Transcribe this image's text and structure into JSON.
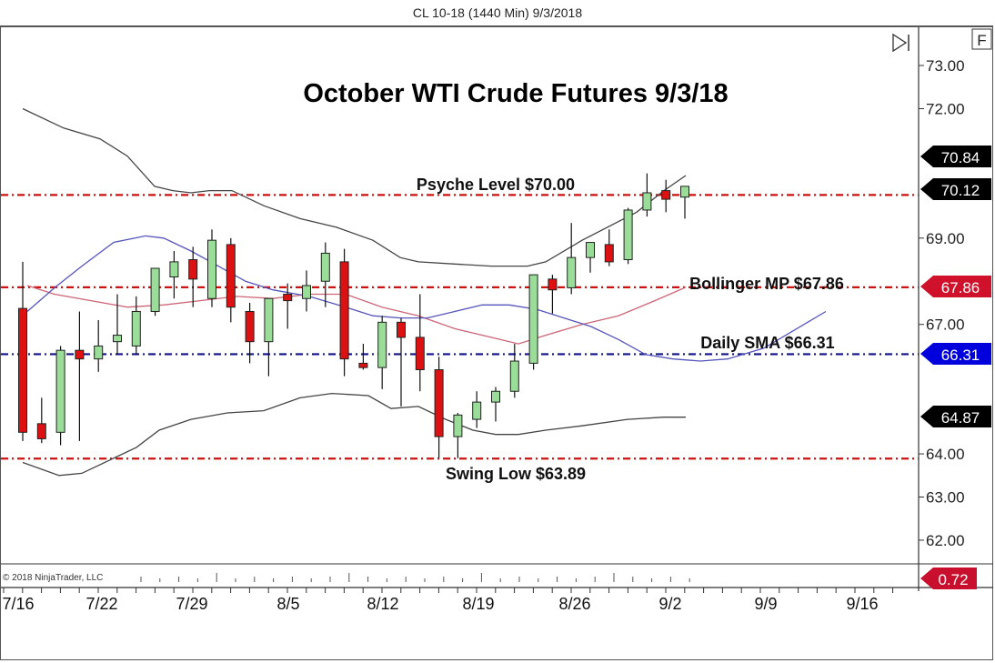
{
  "window": {
    "title": "CL 10-18 (1440 Min)  9/3/2018"
  },
  "toolbar": {
    "autoscroll_icon": "play-to-end-icon",
    "fixed_scale_label": "F"
  },
  "chart_data": {
    "type": "candlestick",
    "title": "October WTI Crude Futures 9/3/18",
    "instrument": "CL 10-18",
    "interval": "1440 Min",
    "date": "9/3/2018",
    "ylim": [
      61.5,
      73.4
    ],
    "y_ticks": [
      "73.00",
      "72.00",
      "69.00",
      "67.00",
      "64.00",
      "63.00",
      "62.00"
    ],
    "x_tick_labels": [
      "7/16",
      "7/22",
      "7/29",
      "8/5",
      "8/12",
      "8/19",
      "8/26",
      "9/2",
      "9/9",
      "9/16"
    ],
    "candles": [
      {
        "o": 67.37,
        "h": 68.45,
        "l": 64.3,
        "c": 64.5
      },
      {
        "o": 64.7,
        "h": 65.3,
        "l": 64.25,
        "c": 64.35
      },
      {
        "o": 64.5,
        "h": 66.5,
        "l": 64.2,
        "c": 66.4
      },
      {
        "o": 66.4,
        "h": 67.3,
        "l": 64.3,
        "c": 66.2
      },
      {
        "o": 66.2,
        "h": 67.1,
        "l": 65.9,
        "c": 66.5
      },
      {
        "o": 66.6,
        "h": 67.7,
        "l": 66.3,
        "c": 66.75
      },
      {
        "o": 66.5,
        "h": 67.65,
        "l": 66.3,
        "c": 67.3
      },
      {
        "o": 67.3,
        "h": 68.0,
        "l": 67.2,
        "c": 68.3
      },
      {
        "o": 68.1,
        "h": 68.7,
        "l": 67.6,
        "c": 68.45
      },
      {
        "o": 68.5,
        "h": 68.8,
        "l": 67.4,
        "c": 68.05
      },
      {
        "o": 67.6,
        "h": 69.2,
        "l": 67.4,
        "c": 68.95
      },
      {
        "o": 68.85,
        "h": 69.0,
        "l": 67.05,
        "c": 67.4
      },
      {
        "o": 67.3,
        "h": 67.5,
        "l": 66.1,
        "c": 66.6
      },
      {
        "o": 66.6,
        "h": 67.6,
        "l": 65.8,
        "c": 67.6
      },
      {
        "o": 67.7,
        "h": 67.95,
        "l": 66.9,
        "c": 67.55
      },
      {
        "o": 67.6,
        "h": 68.25,
        "l": 67.3,
        "c": 67.9
      },
      {
        "o": 68.0,
        "h": 68.9,
        "l": 67.4,
        "c": 68.65
      },
      {
        "o": 68.45,
        "h": 68.75,
        "l": 65.8,
        "c": 66.2
      },
      {
        "o": 66.1,
        "h": 66.55,
        "l": 65.95,
        "c": 66.0
      },
      {
        "o": 66.0,
        "h": 67.2,
        "l": 65.5,
        "c": 67.05
      },
      {
        "o": 67.05,
        "h": 67.15,
        "l": 65.1,
        "c": 66.7
      },
      {
        "o": 66.7,
        "h": 67.7,
        "l": 65.45,
        "c": 65.95
      },
      {
        "o": 65.95,
        "h": 66.25,
        "l": 63.9,
        "c": 64.4
      },
      {
        "o": 64.4,
        "h": 64.95,
        "l": 63.9,
        "c": 64.9
      },
      {
        "o": 64.8,
        "h": 65.45,
        "l": 64.6,
        "c": 65.2
      },
      {
        "o": 65.2,
        "h": 65.55,
        "l": 64.75,
        "c": 65.45
      },
      {
        "o": 65.45,
        "h": 66.55,
        "l": 65.3,
        "c": 66.15
      },
      {
        "o": 66.1,
        "h": 68.15,
        "l": 65.95,
        "c": 68.15
      },
      {
        "o": 68.05,
        "h": 68.15,
        "l": 67.25,
        "c": 67.8
      },
      {
        "o": 67.85,
        "h": 69.35,
        "l": 67.7,
        "c": 68.55
      },
      {
        "o": 68.55,
        "h": 68.85,
        "l": 68.2,
        "c": 68.9
      },
      {
        "o": 68.85,
        "h": 69.2,
        "l": 68.35,
        "c": 68.45
      },
      {
        "o": 68.5,
        "h": 69.7,
        "l": 68.4,
        "c": 69.65
      },
      {
        "o": 69.65,
        "h": 70.5,
        "l": 69.5,
        "c": 70.05
      },
      {
        "o": 70.1,
        "h": 70.35,
        "l": 69.6,
        "c": 69.9
      },
      {
        "o": 69.95,
        "h": 70.2,
        "l": 69.45,
        "c": 70.2
      }
    ],
    "series": [
      {
        "name": "Bollinger Upper",
        "color": "#444444",
        "points": [
          [
            25,
            72.0
          ],
          [
            70,
            71.55
          ],
          [
            110,
            71.3
          ],
          [
            140,
            70.9
          ],
          [
            170,
            70.2
          ],
          [
            190,
            70.1
          ],
          [
            210,
            70.05
          ],
          [
            230,
            70.1
          ],
          [
            255,
            70.1
          ],
          [
            290,
            69.75
          ],
          [
            330,
            69.45
          ],
          [
            370,
            69.25
          ],
          [
            410,
            68.95
          ],
          [
            440,
            68.55
          ],
          [
            460,
            68.45
          ],
          [
            500,
            68.4
          ],
          [
            540,
            68.35
          ],
          [
            580,
            68.35
          ],
          [
            600,
            68.45
          ],
          [
            640,
            68.95
          ],
          [
            700,
            69.6
          ],
          [
            730,
            70.1
          ],
          [
            754,
            70.45
          ]
        ]
      },
      {
        "name": "Bollinger Lower",
        "color": "#444444",
        "points": [
          [
            25,
            63.8
          ],
          [
            65,
            63.5
          ],
          [
            90,
            63.55
          ],
          [
            120,
            63.85
          ],
          [
            150,
            64.15
          ],
          [
            175,
            64.55
          ],
          [
            210,
            64.8
          ],
          [
            250,
            64.95
          ],
          [
            290,
            65.0
          ],
          [
            330,
            65.3
          ],
          [
            365,
            65.4
          ],
          [
            405,
            65.35
          ],
          [
            430,
            65.05
          ],
          [
            460,
            65.1
          ],
          [
            490,
            64.8
          ],
          [
            520,
            64.55
          ],
          [
            545,
            64.45
          ],
          [
            570,
            64.45
          ],
          [
            600,
            64.55
          ],
          [
            640,
            64.65
          ],
          [
            690,
            64.8
          ],
          [
            730,
            64.85
          ],
          [
            754,
            64.85
          ]
        ]
      },
      {
        "name": "Bollinger MP",
        "color": "#cc6677",
        "points": [
          [
            30,
            67.9
          ],
          [
            60,
            67.7
          ],
          [
            100,
            67.55
          ],
          [
            140,
            67.4
          ],
          [
            180,
            67.45
          ],
          [
            220,
            67.55
          ],
          [
            260,
            67.65
          ],
          [
            300,
            67.6
          ],
          [
            340,
            67.7
          ],
          [
            380,
            67.7
          ],
          [
            420,
            67.4
          ],
          [
            460,
            67.2
          ],
          [
            500,
            66.9
          ],
          [
            540,
            66.7
          ],
          [
            570,
            66.55
          ],
          [
            600,
            66.75
          ],
          [
            640,
            67.0
          ],
          [
            680,
            67.2
          ],
          [
            720,
            67.55
          ],
          [
            754,
            67.86
          ]
        ]
      },
      {
        "name": "Daily SMA",
        "color": "#5555bb",
        "points": [
          [
            30,
            67.3
          ],
          [
            60,
            67.85
          ],
          [
            90,
            68.35
          ],
          [
            125,
            68.9
          ],
          [
            160,
            69.05
          ],
          [
            180,
            69.0
          ],
          [
            210,
            68.7
          ],
          [
            240,
            68.35
          ],
          [
            270,
            68.0
          ],
          [
            300,
            67.8
          ],
          [
            340,
            67.65
          ],
          [
            380,
            67.4
          ],
          [
            410,
            67.2
          ],
          [
            440,
            67.15
          ],
          [
            470,
            67.15
          ],
          [
            500,
            67.3
          ],
          [
            530,
            67.45
          ],
          [
            560,
            67.45
          ],
          [
            590,
            67.35
          ],
          [
            620,
            67.15
          ],
          [
            650,
            66.95
          ],
          [
            680,
            66.65
          ],
          [
            710,
            66.3
          ],
          [
            740,
            66.2
          ],
          [
            770,
            66.15
          ],
          [
            800,
            66.2
          ],
          [
            840,
            66.45
          ],
          [
            880,
            66.95
          ],
          [
            908,
            67.3
          ]
        ]
      }
    ],
    "levels": [
      {
        "name": "Psyche Level",
        "label": "Psyche Level $70.00",
        "value": 70.0,
        "color": "#cc1111"
      },
      {
        "name": "Bollinger MP",
        "label": "Bollinger MP $67.86",
        "value": 67.86,
        "color": "#cc1111"
      },
      {
        "name": "Daily SMA",
        "label": "Daily SMA $66.31",
        "value": 66.31,
        "color": "#111188"
      },
      {
        "name": "Swing Low",
        "label": "Swing Low $63.89",
        "value": 63.89,
        "color": "#cc1111"
      }
    ],
    "price_tags": [
      {
        "value": "70.84",
        "bg": "#000000"
      },
      {
        "value": "70.12",
        "bg": "#000000"
      },
      {
        "value": "67.86",
        "bg": "#d0112b"
      },
      {
        "value": "66.31",
        "bg": "#0000dd"
      },
      {
        "value": "64.87",
        "bg": "#000000"
      }
    ],
    "lower_panel": {
      "tag_value": "0.72",
      "tag_bg": "#c8102e"
    },
    "up_color": "#99dd99",
    "down_color": "#dd1111"
  },
  "footer": {
    "copyright": "© 2018 NinjaTrader, LLC"
  }
}
